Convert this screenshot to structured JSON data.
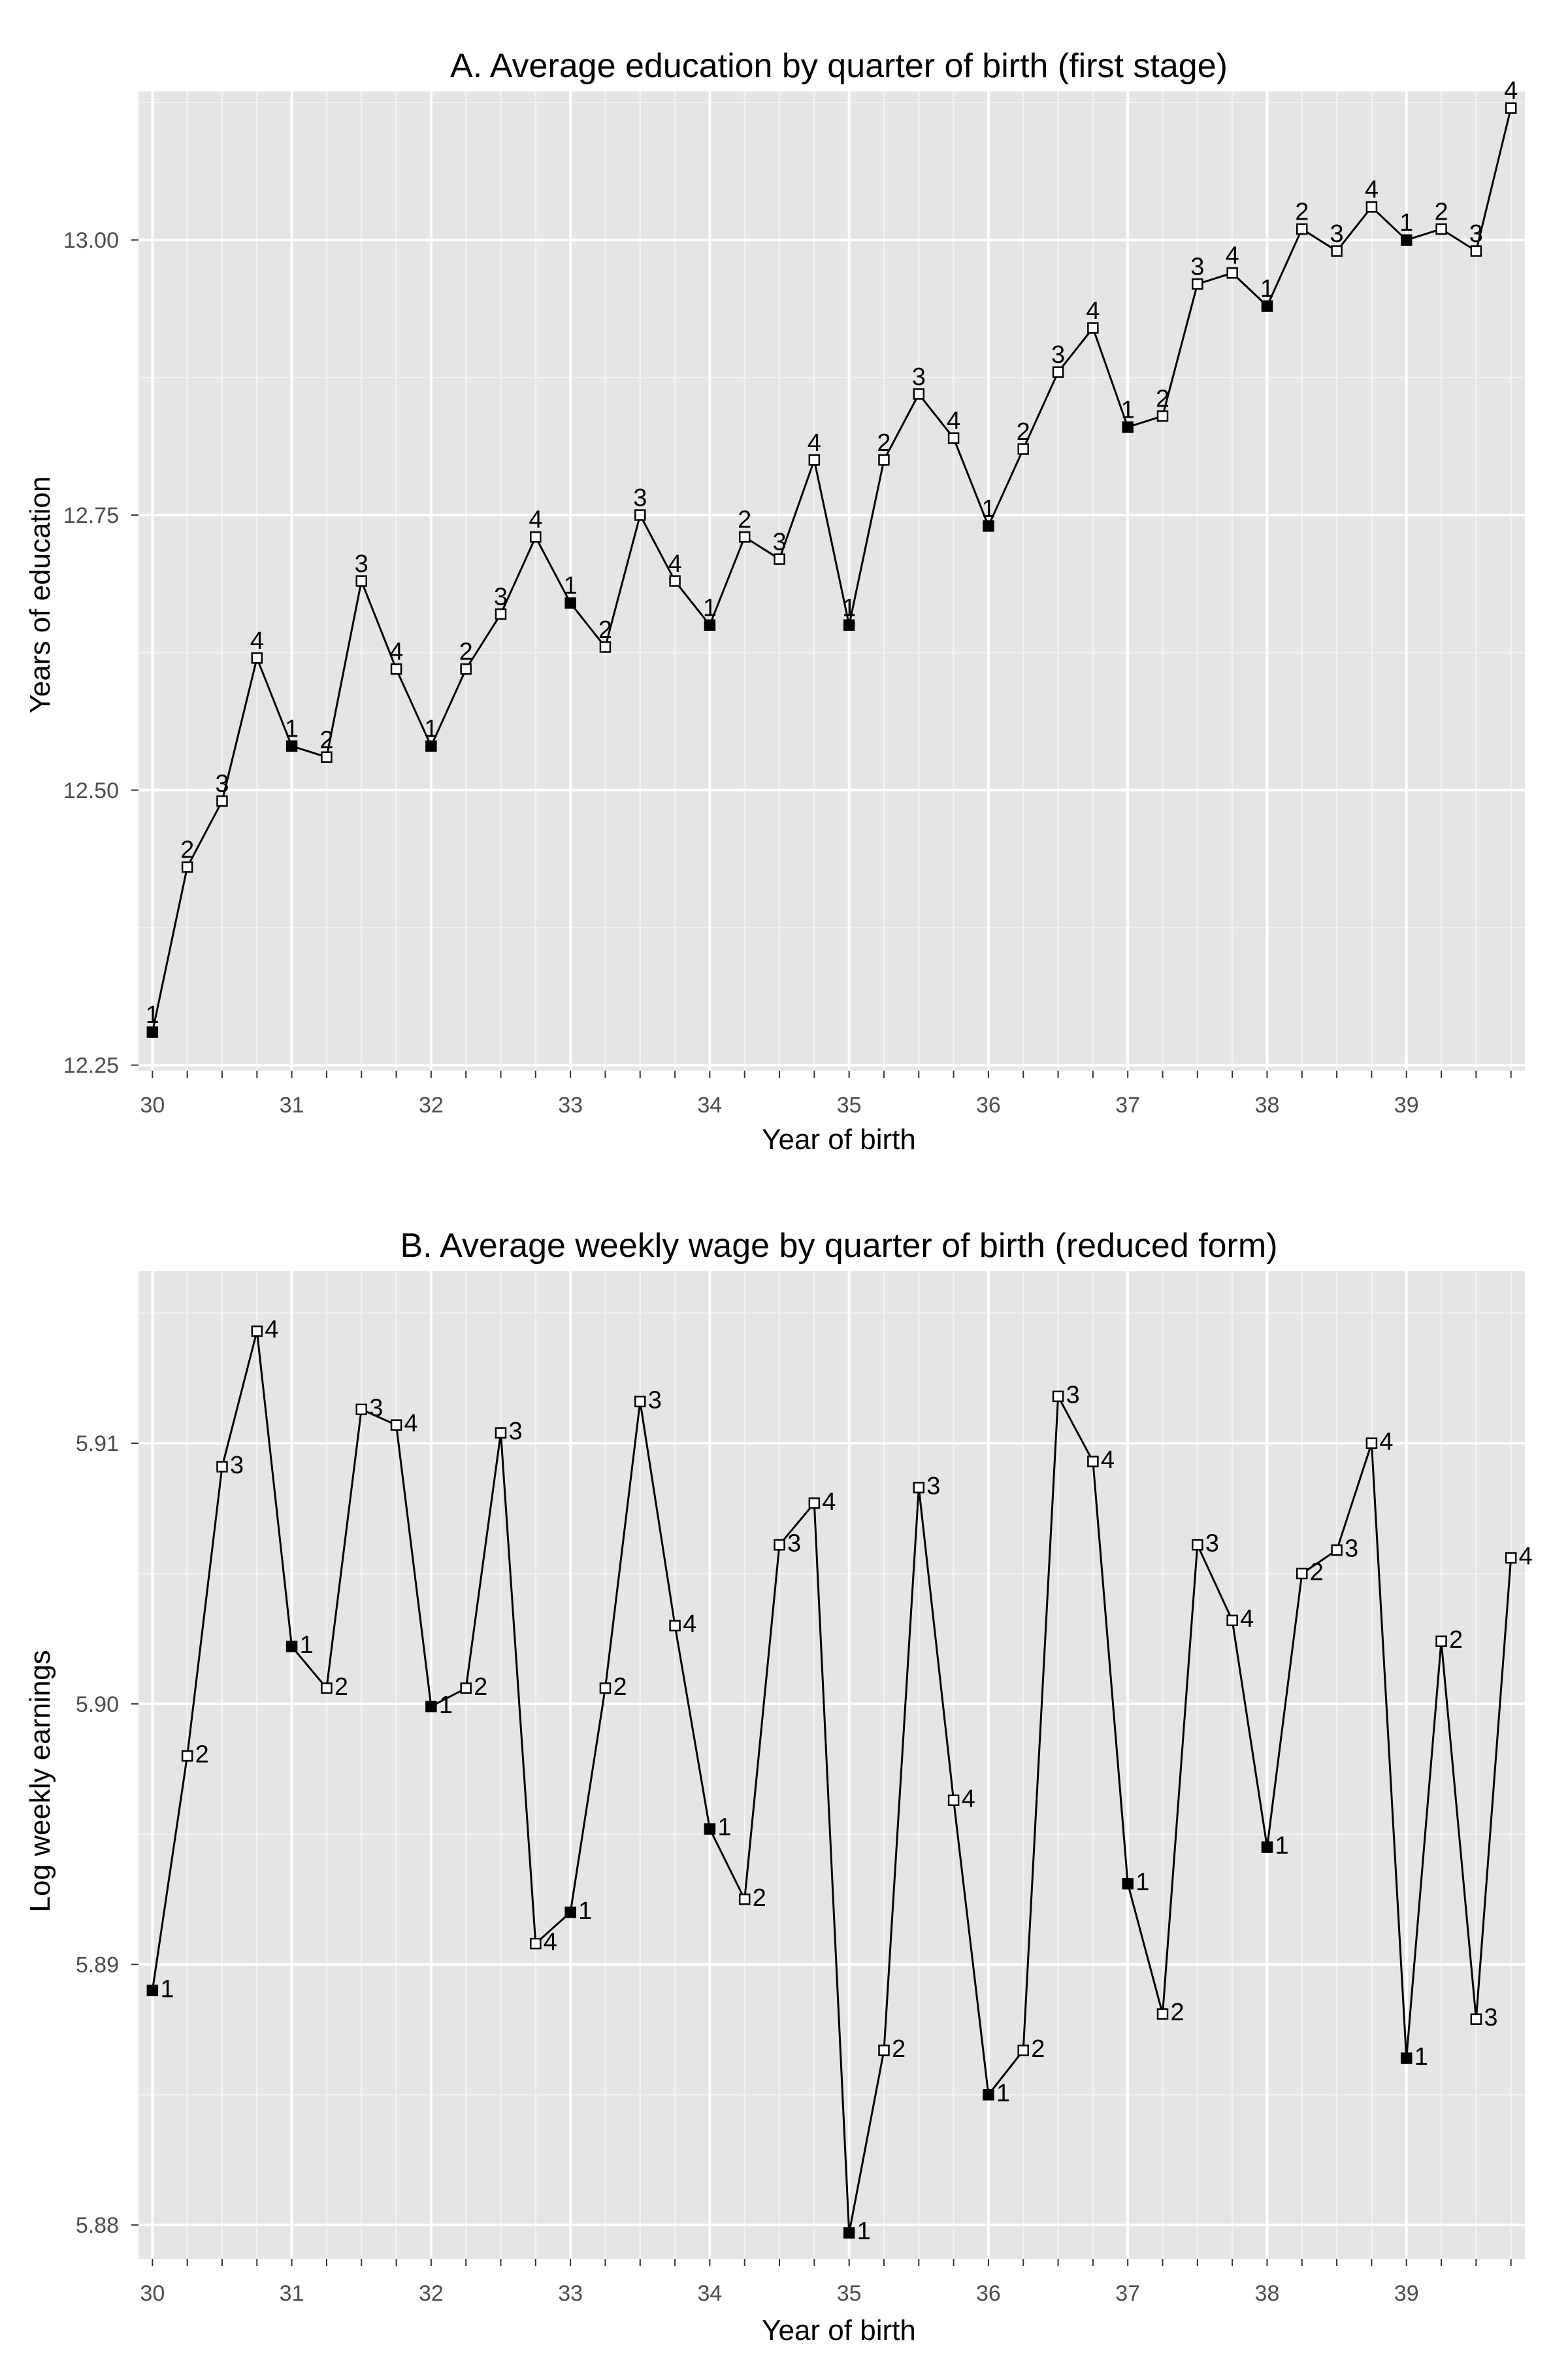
{
  "chart_data": [
    {
      "type": "line",
      "title": "A. Average education by quarter of birth (first stage)",
      "xlabel": "Year of birth",
      "ylabel": "Years of education",
      "xlim": [
        29.9,
        39.85
      ],
      "ylim": [
        12.245,
        13.135
      ],
      "x_ticks": [
        "30",
        "31",
        "32",
        "33",
        "34",
        "35",
        "36",
        "37",
        "38",
        "39"
      ],
      "y_ticks": [
        "12.25",
        "12.50",
        "12.75",
        "13.00"
      ],
      "grid": true,
      "background": "#e5e5e5",
      "grid_color": "#ffffff",
      "line_color": "#000000",
      "label_position": "above",
      "marker_legend": {
        "filled": "quarter 1",
        "hollow": "quarters 2–4"
      },
      "series": [
        {
          "x": [
            30.0,
            30.25,
            30.5,
            30.75,
            31.0,
            31.25,
            31.5,
            31.75,
            32.0,
            32.25,
            32.5,
            32.75,
            33.0,
            33.25,
            33.5,
            33.75,
            34.0,
            34.25,
            34.5,
            34.75,
            35.0,
            35.25,
            35.5,
            35.75,
            36.0,
            36.25,
            36.5,
            36.75,
            37.0,
            37.25,
            37.5,
            37.75,
            38.0,
            38.25,
            38.5,
            38.75,
            39.0,
            39.25,
            39.5,
            39.75
          ],
          "values": [
            12.28,
            12.43,
            12.49,
            12.62,
            12.54,
            12.53,
            12.69,
            12.61,
            12.54,
            12.61,
            12.66,
            12.73,
            12.67,
            12.63,
            12.75,
            12.69,
            12.65,
            12.73,
            12.71,
            12.8,
            12.65,
            12.8,
            12.86,
            12.82,
            12.74,
            12.81,
            12.88,
            12.92,
            12.83,
            12.84,
            12.96,
            12.97,
            12.94,
            13.01,
            12.99,
            13.03,
            13.0,
            13.01,
            12.99,
            13.12
          ],
          "labels": [
            "1",
            "2",
            "3",
            "4",
            "1",
            "2",
            "3",
            "4",
            "1",
            "2",
            "3",
            "4",
            "1",
            "2",
            "3",
            "4",
            "1",
            "2",
            "3",
            "4",
            "1",
            "2",
            "3",
            "4",
            "1",
            "2",
            "3",
            "4",
            "1",
            "2",
            "3",
            "4",
            "1",
            "2",
            "3",
            "4",
            "1",
            "2",
            "3",
            "4"
          ]
        }
      ]
    },
    {
      "type": "line",
      "title": "B. Average weekly wage by quarter of birth (reduced form)",
      "xlabel": "Year of birth",
      "ylabel": "Log weekly earnings",
      "xlim": [
        29.9,
        39.85
      ],
      "ylim": [
        5.8787,
        5.9166
      ],
      "x_ticks": [
        "30",
        "31",
        "32",
        "33",
        "34",
        "35",
        "36",
        "37",
        "38",
        "39"
      ],
      "y_ticks": [
        "5.88",
        "5.89",
        "5.90",
        "5.91"
      ],
      "grid": true,
      "background": "#e5e5e5",
      "grid_color": "#ffffff",
      "line_color": "#000000",
      "label_position": "right",
      "marker_legend": {
        "filled": "quarter 1",
        "hollow": "quarters 2–4"
      },
      "series": [
        {
          "x": [
            30.0,
            30.25,
            30.5,
            30.75,
            31.0,
            31.25,
            31.5,
            31.75,
            32.0,
            32.25,
            32.5,
            32.75,
            33.0,
            33.25,
            33.5,
            33.75,
            34.0,
            34.25,
            34.5,
            34.75,
            35.0,
            35.25,
            35.5,
            35.75,
            36.0,
            36.25,
            36.5,
            36.75,
            37.0,
            37.25,
            37.5,
            37.75,
            38.0,
            38.25,
            38.5,
            38.75,
            39.0,
            39.25,
            39.5,
            39.75
          ],
          "values": [
            5.889,
            5.898,
            5.9091,
            5.9143,
            5.9022,
            5.9006,
            5.9113,
            5.9107,
            5.8999,
            5.9006,
            5.9104,
            5.8908,
            5.892,
            5.9006,
            5.9116,
            5.903,
            5.8952,
            5.8925,
            5.9061,
            5.9077,
            5.8797,
            5.8867,
            5.9083,
            5.8963,
            5.885,
            5.8867,
            5.9118,
            5.9093,
            5.8931,
            5.8881,
            5.9061,
            5.9032,
            5.8945,
            5.905,
            5.9059,
            5.91,
            5.8864,
            5.9024,
            5.8879,
            5.9056
          ],
          "labels": [
            "1",
            "2",
            "3",
            "4",
            "1",
            "2",
            "3",
            "4",
            "1",
            "2",
            "3",
            "4",
            "1",
            "2",
            "3",
            "4",
            "1",
            "2",
            "3",
            "4",
            "1",
            "2",
            "3",
            "4",
            "1",
            "2",
            "3",
            "4",
            "1",
            "2",
            "3",
            "4",
            "1",
            "2",
            "3",
            "4",
            "1",
            "2",
            "3",
            "4"
          ]
        }
      ]
    }
  ]
}
